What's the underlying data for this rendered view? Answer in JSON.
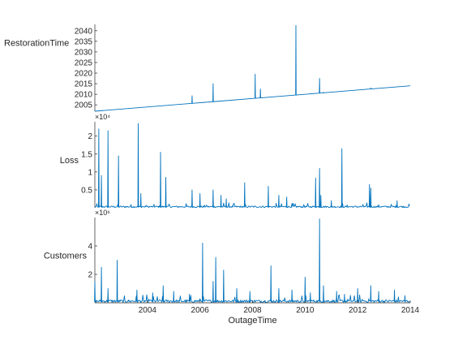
{
  "chart_data": {
    "type": "line",
    "layout": "stacked",
    "shared_x": {
      "label": "OutageTime",
      "range": [
        2002.0,
        2014.0
      ],
      "tick_values": [
        2004,
        2006,
        2008,
        2010,
        2012,
        2014
      ],
      "tick_labels": [
        "2004",
        "2006",
        "2008",
        "2010",
        "2012",
        "2014"
      ]
    },
    "color": "#0072BD",
    "panels": [
      {
        "ylabel": "RestorationTime",
        "ylim": [
          2002,
          2043
        ],
        "yticks": [
          2005,
          2010,
          2015,
          2020,
          2025,
          2030,
          2035,
          2040
        ],
        "ytick_labels": [
          "2005",
          "2010",
          "2015",
          "2020",
          "2025",
          "2030",
          "2035",
          "2040"
        ],
        "exponent_label": "",
        "baseline": {
          "x": [
            2002.0,
            2014.0
          ],
          "y": [
            2002.0,
            2014.0
          ]
        },
        "spikes": [
          {
            "x": 2005.7,
            "y": 2009.3
          },
          {
            "x": 2006.5,
            "y": 2015.0
          },
          {
            "x": 2008.1,
            "y": 2019.5
          },
          {
            "x": 2008.3,
            "y": 2012.5
          },
          {
            "x": 2009.65,
            "y": 2042.5
          },
          {
            "x": 2010.55,
            "y": 2017.5
          },
          {
            "x": 2010.7,
            "y": 2011.0
          },
          {
            "x": 2012.5,
            "y": 2013.0
          }
        ]
      },
      {
        "ylabel": "Loss",
        "ylim": [
          0,
          24000
        ],
        "yticks": [
          5000,
          10000,
          15000,
          20000
        ],
        "ytick_labels": [
          "0.5",
          "1",
          "1.5",
          "2"
        ],
        "exponent_label": "×10⁴",
        "baseline_level": 300,
        "spikes": [
          {
            "x": 2002.15,
            "y": 22000
          },
          {
            "x": 2002.25,
            "y": 9000
          },
          {
            "x": 2002.5,
            "y": 21500
          },
          {
            "x": 2002.9,
            "y": 14500
          },
          {
            "x": 2003.65,
            "y": 23500
          },
          {
            "x": 2003.75,
            "y": 4000
          },
          {
            "x": 2004.5,
            "y": 15500
          },
          {
            "x": 2004.7,
            "y": 8500
          },
          {
            "x": 2005.7,
            "y": 5000
          },
          {
            "x": 2006.0,
            "y": 4000
          },
          {
            "x": 2006.5,
            "y": 5000
          },
          {
            "x": 2006.8,
            "y": 3500
          },
          {
            "x": 2007.0,
            "y": 2500
          },
          {
            "x": 2007.7,
            "y": 7000
          },
          {
            "x": 2008.6,
            "y": 6000
          },
          {
            "x": 2009.0,
            "y": 3500
          },
          {
            "x": 2009.3,
            "y": 3000
          },
          {
            "x": 2010.4,
            "y": 8300
          },
          {
            "x": 2010.55,
            "y": 11000
          },
          {
            "x": 2010.6,
            "y": 3500
          },
          {
            "x": 2011.0,
            "y": 2000
          },
          {
            "x": 2011.4,
            "y": 16500
          },
          {
            "x": 2012.45,
            "y": 6500
          },
          {
            "x": 2012.5,
            "y": 5500
          },
          {
            "x": 2013.5,
            "y": 2000
          }
        ]
      },
      {
        "ylabel": "Customers",
        "ylim": [
          0,
          6000000
        ],
        "yticks": [
          2000000,
          4000000
        ],
        "ytick_labels": [
          "2",
          "4"
        ],
        "exponent_label": "×10⁶",
        "baseline_level": 120000,
        "spikes": [
          {
            "x": 2002.0,
            "y": 1500000
          },
          {
            "x": 2002.25,
            "y": 2500000
          },
          {
            "x": 2002.5,
            "y": 1000000
          },
          {
            "x": 2002.85,
            "y": 3000000
          },
          {
            "x": 2003.6,
            "y": 900000
          },
          {
            "x": 2004.2,
            "y": 700000
          },
          {
            "x": 2004.6,
            "y": 1200000
          },
          {
            "x": 2005.0,
            "y": 800000
          },
          {
            "x": 2005.6,
            "y": 600000
          },
          {
            "x": 2006.1,
            "y": 4200000
          },
          {
            "x": 2006.5,
            "y": 1500000
          },
          {
            "x": 2006.6,
            "y": 3200000
          },
          {
            "x": 2006.9,
            "y": 2300000
          },
          {
            "x": 2007.4,
            "y": 1000000
          },
          {
            "x": 2007.9,
            "y": 800000
          },
          {
            "x": 2008.7,
            "y": 2600000
          },
          {
            "x": 2009.0,
            "y": 1000000
          },
          {
            "x": 2009.5,
            "y": 900000
          },
          {
            "x": 2010.0,
            "y": 1800000
          },
          {
            "x": 2010.2,
            "y": 700000
          },
          {
            "x": 2010.55,
            "y": 5900000
          },
          {
            "x": 2010.7,
            "y": 1200000
          },
          {
            "x": 2011.2,
            "y": 800000
          },
          {
            "x": 2011.5,
            "y": 600000
          },
          {
            "x": 2012.0,
            "y": 1000000
          },
          {
            "x": 2012.5,
            "y": 1200000
          },
          {
            "x": 2012.8,
            "y": 800000
          },
          {
            "x": 2013.4,
            "y": 900000
          },
          {
            "x": 2013.8,
            "y": 500000
          }
        ]
      }
    ]
  }
}
